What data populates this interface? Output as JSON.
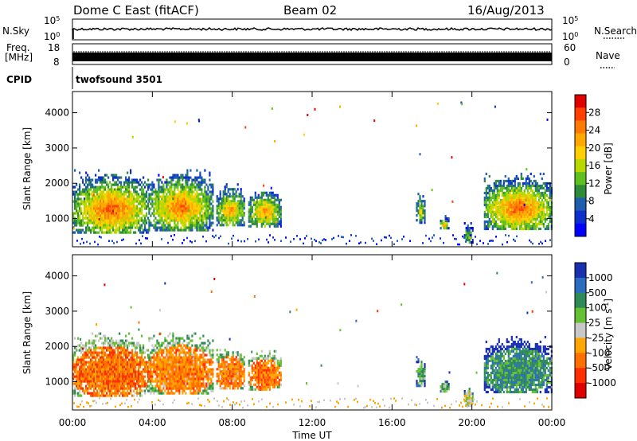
{
  "header": {
    "station": "Dome C East (fitACF)",
    "beam": "Beam 02",
    "date": "16/Aug/2013"
  },
  "strips": {
    "nsky_label": "N.Sky",
    "nsky_ticks": [
      "10^5",
      "10^0"
    ],
    "nsearch_label": "N.Search",
    "nsearch_ticks": [
      "10^5",
      "10^0"
    ],
    "freq_label_line1": "Freq.",
    "freq_label_line2": "[MHz]",
    "freq_ticks": [
      "18",
      "8"
    ],
    "nave_label": "Nave",
    "nave_ticks": [
      "60",
      "0"
    ],
    "cpid_label": "CPID",
    "cpid_value": "twofsound 3501"
  },
  "chart_data": [
    {
      "type": "heatmap",
      "panel": "power",
      "ylabel": "Slant Range [km]",
      "xlabel": "",
      "yticks": [
        1000,
        2000,
        3000,
        4000
      ],
      "ylim": [
        200,
        4600
      ],
      "xticks": [
        "00:00",
        "04:00",
        "08:00",
        "12:00",
        "16:00",
        "20:00",
        "00:00"
      ],
      "xlim_hours": [
        0,
        24
      ],
      "colorbar": {
        "label": "Power [dB]",
        "ticks": [
          "28",
          "24",
          "20",
          "16",
          "12",
          "8",
          "4"
        ],
        "colors": [
          "#e00000",
          "#ff4000",
          "#ff7a00",
          "#ffa800",
          "#ffd000",
          "#b8d800",
          "#60c020",
          "#2e8b3a",
          "#1d5fae",
          "#0d2fd0",
          "#0000ff"
        ]
      },
      "echo_regions": [
        {
          "t0": 0.0,
          "t1": 3.8,
          "r0": 600,
          "r1": 2400,
          "peak_level": 0.9
        },
        {
          "t0": 3.8,
          "t1": 7.0,
          "r0": 700,
          "r1": 2400,
          "peak_level": 0.85
        },
        {
          "t0": 7.2,
          "t1": 8.6,
          "r0": 800,
          "r1": 2000,
          "peak_level": 0.75
        },
        {
          "t0": 8.8,
          "t1": 10.4,
          "r0": 800,
          "r1": 1900,
          "peak_level": 0.8
        },
        {
          "t0": 17.2,
          "t1": 17.6,
          "r0": 900,
          "r1": 1800,
          "peak_level": 0.6
        },
        {
          "t0": 18.4,
          "t1": 18.8,
          "r0": 700,
          "r1": 1100,
          "peak_level": 0.7
        },
        {
          "t0": 19.6,
          "t1": 20.0,
          "r0": 300,
          "r1": 900,
          "peak_level": 0.5
        },
        {
          "t0": 20.6,
          "t1": 24.0,
          "r0": 700,
          "r1": 2300,
          "peak_level": 0.9
        }
      ]
    },
    {
      "type": "heatmap",
      "panel": "velocity",
      "ylabel": "Slant Range [km]",
      "xlabel": "Time UT",
      "yticks": [
        1000,
        2000,
        3000,
        4000
      ],
      "ylim": [
        200,
        4600
      ],
      "xticks": [
        "00:00",
        "04:00",
        "08:00",
        "12:00",
        "16:00",
        "20:00",
        "00:00"
      ],
      "xlim_hours": [
        0,
        24
      ],
      "colorbar": {
        "label": "Velocity [m s^-1]",
        "ticks": [
          "1000",
          "500",
          "100",
          "25",
          "-25",
          "-100",
          "-500",
          "-1000"
        ],
        "colors": [
          "#1a2fb0",
          "#2c6cc0",
          "#2e8b57",
          "#66c033",
          "#c8c8c8",
          "#ffa500",
          "#ff7000",
          "#ff3000",
          "#e00000"
        ]
      },
      "echo_regions": [
        {
          "t0": 0.0,
          "t1": 3.8,
          "r0": 600,
          "r1": 2400,
          "peak_level": 0.75
        },
        {
          "t0": 3.8,
          "t1": 7.0,
          "r0": 700,
          "r1": 2400,
          "peak_level": 0.7
        },
        {
          "t0": 7.2,
          "t1": 8.6,
          "r0": 800,
          "r1": 2000,
          "peak_level": 0.7
        },
        {
          "t0": 8.8,
          "t1": 10.4,
          "r0": 800,
          "r1": 1900,
          "peak_level": 0.75
        },
        {
          "t0": 17.2,
          "t1": 17.6,
          "r0": 900,
          "r1": 1800,
          "peak_level": 0.3
        },
        {
          "t0": 18.4,
          "t1": 18.8,
          "r0": 700,
          "r1": 1100,
          "peak_level": 0.4
        },
        {
          "t0": 19.6,
          "t1": 20.0,
          "r0": 300,
          "r1": 900,
          "peak_level": 0.5
        },
        {
          "t0": 20.6,
          "t1": 24.0,
          "r0": 700,
          "r1": 2300,
          "peak_level": 0.25
        }
      ]
    }
  ]
}
